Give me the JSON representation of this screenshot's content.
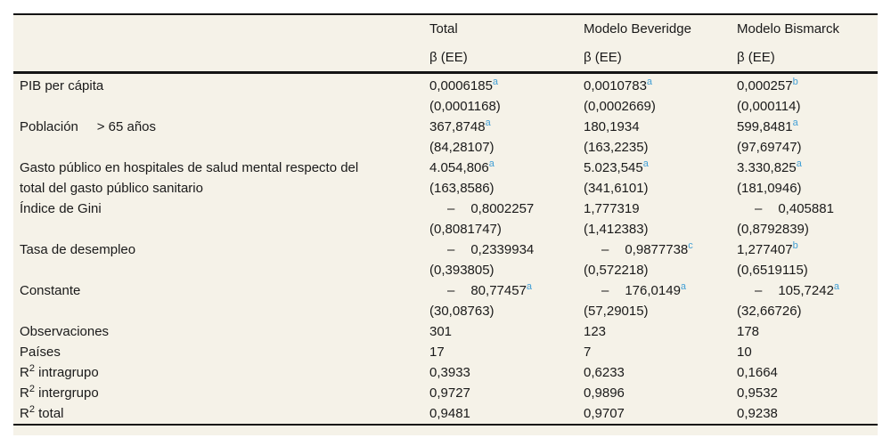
{
  "colors": {
    "table_background": "#f5f2e8",
    "rule_color": "#141414",
    "text_color": "#1a1a1a",
    "significance_superscript_color": "#429fd5"
  },
  "table": {
    "header": {
      "col_labels": [
        "Total",
        "Modelo Beveridge",
        "Modelo Bismarck"
      ],
      "sub_labels": [
        "β (EE)",
        "β (EE)",
        "β (EE)"
      ]
    },
    "rows": [
      {
        "label_pre": "PIB per cápita",
        "cells": [
          {
            "value": "0,0006185",
            "sup": "a",
            "se": "(0,0001168)"
          },
          {
            "value": "0,0010783",
            "sup": "a",
            "se": "(0,0002669)"
          },
          {
            "value": "0,000257",
            "sup": "b",
            "se": "(0,000114)"
          }
        ]
      },
      {
        "label_pre": "Población     > 65 años",
        "cells": [
          {
            "value": "367,8748",
            "sup": "a",
            "se": "(84,28107)"
          },
          {
            "value": "180,1934",
            "se": "(163,2235)"
          },
          {
            "value": "599,8481",
            "sup": "a",
            "se": "(97,69747)"
          }
        ]
      },
      {
        "label_pre": "Gasto público en hospitales de salud mental respecto del\ntotal del gasto público sanitario",
        "cells": [
          {
            "value": "4.054,806",
            "sup": "a",
            "se": "(163,8586)"
          },
          {
            "value": "5.023,545",
            "sup": "a",
            "se": "(341,6101)"
          },
          {
            "value": "3.330,825",
            "sup": "a",
            "se": "(181,0946)"
          }
        ]
      },
      {
        "label_pre": "Índice de Gini",
        "cells": [
          {
            "minus": "–",
            "value": "0,8002257",
            "se": "(0,8081747)"
          },
          {
            "value": "1,777319",
            "se": "(1,412383)"
          },
          {
            "minus": "–",
            "value": "0,405881",
            "se": "(0,8792839)"
          }
        ]
      },
      {
        "label_pre": "Tasa de desempleo",
        "cells": [
          {
            "minus": "–",
            "value": "0,2339934",
            "se": "(0,393805)"
          },
          {
            "minus": "–",
            "value": "0,9877738",
            "sup": "c",
            "se": "(0,572218)"
          },
          {
            "value": "1,277407",
            "sup": "b",
            "se": "(0,6519115)"
          }
        ]
      },
      {
        "label_pre": "Constante",
        "cells": [
          {
            "minus": "–",
            "value": "80,77457",
            "sup": "a",
            "se": "(30,08763)"
          },
          {
            "minus": "–",
            "value": "176,0149",
            "sup": "a",
            "se": "(57,29015)"
          },
          {
            "minus": "–",
            "value": "105,7242",
            "sup": "a",
            "se": "(32,66726)"
          }
        ]
      },
      {
        "label_pre": "Observaciones",
        "cells": [
          {
            "value": "301"
          },
          {
            "value": "123"
          },
          {
            "value": "178"
          }
        ]
      },
      {
        "label_pre": "Países",
        "cells": [
          {
            "value": "17"
          },
          {
            "value": "7"
          },
          {
            "value": "10"
          }
        ]
      },
      {
        "label_pre": "R",
        "label_sup": "2",
        "label_post": " intragrupo",
        "cells": [
          {
            "value": "0,3933"
          },
          {
            "value": "0,6233"
          },
          {
            "value": "0,1664"
          }
        ]
      },
      {
        "label_pre": "R",
        "label_sup": "2",
        "label_post": " intergrupo",
        "cells": [
          {
            "value": "0,9727"
          },
          {
            "value": "0,9896"
          },
          {
            "value": "0,9532"
          }
        ]
      },
      {
        "label_pre": "R",
        "label_sup": "2",
        "label_post": " total",
        "cells": [
          {
            "value": "0,9481"
          },
          {
            "value": "0,9707"
          },
          {
            "value": "0,9238"
          }
        ]
      }
    ]
  }
}
